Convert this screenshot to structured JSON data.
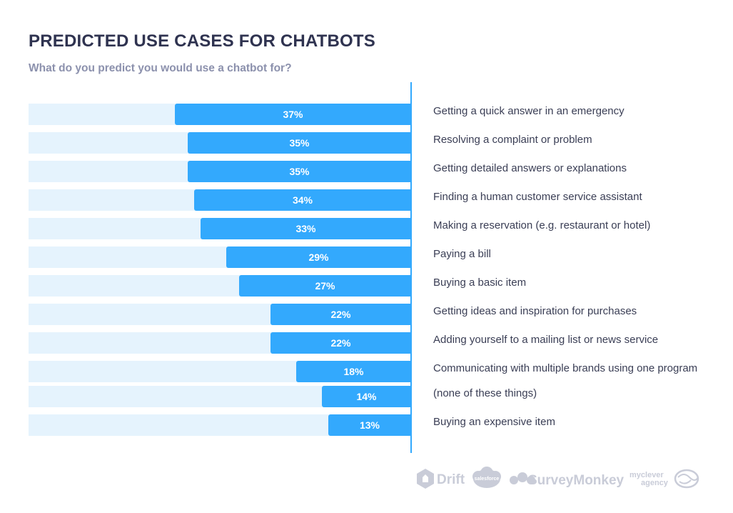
{
  "chart_data": {
    "type": "bar",
    "orientation": "horizontal",
    "title": "PREDICTED USE CASES FOR CHATBOTS",
    "subtitle": "What do you predict you would use a chatbot for?",
    "categories": [
      "Getting a quick answer in an emergency",
      "Resolving a complaint or problem",
      "Getting detailed answers or explanations",
      "Finding a human customer service assistant",
      "Making a reservation (e.g. restaurant or hotel)",
      "Paying a bill",
      "Buying a basic item",
      "Getting ideas and inspiration for purchases",
      "Adding yourself to a mailing list or news service",
      "Communicating with multiple brands using one program",
      "(none of these things)",
      "Buying an expensive item"
    ],
    "values": [
      37,
      35,
      35,
      34,
      33,
      29,
      27,
      22,
      22,
      18,
      14,
      13
    ],
    "value_labels": [
      "37%",
      "35%",
      "35%",
      "34%",
      "33%",
      "29%",
      "27%",
      "22%",
      "22%",
      "18%",
      "14%",
      "13%"
    ],
    "value_unit": "%",
    "xlim": [
      0,
      60
    ],
    "grid": false,
    "legend": "none",
    "colors": {
      "bar": "#33a9fd",
      "track": "#e5f3fd",
      "title": "#2f3350",
      "subtitle": "#8c91ad"
    }
  },
  "logos": {
    "drift": "Drift",
    "salesforce": "salesforce",
    "surveymonkey": "SurveyMonkey",
    "myclever_line1": "myclever",
    "myclever_line2": "agency"
  }
}
